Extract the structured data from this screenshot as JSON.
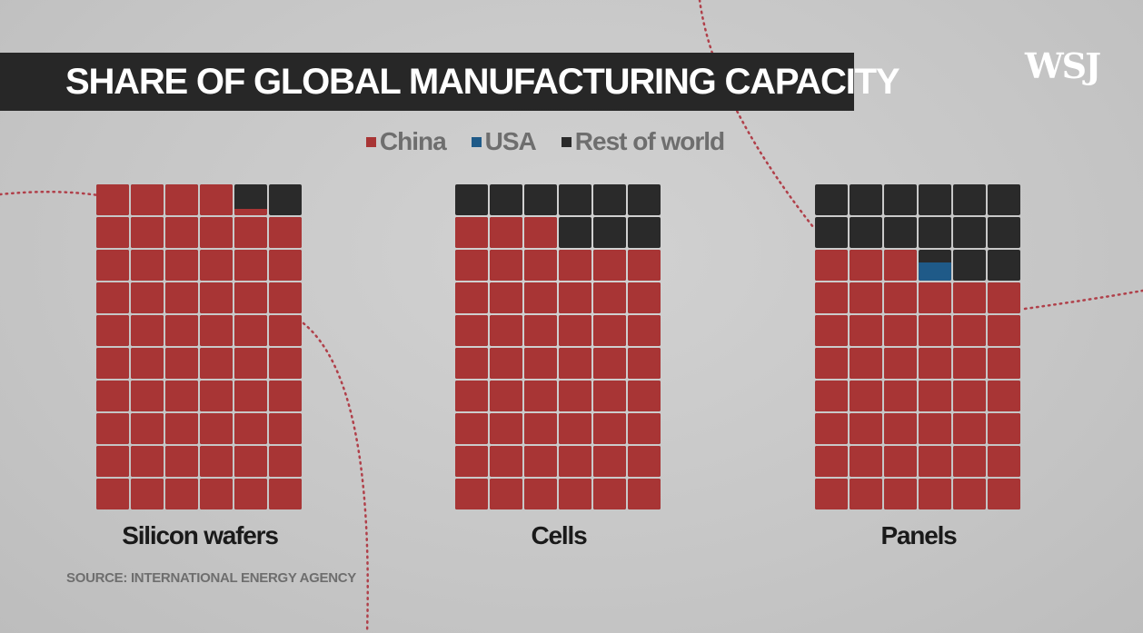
{
  "title": "SHARE OF GLOBAL MANUFACTURING CAPACITY",
  "logo": "WSJ",
  "source": "SOURCE: INTERNATIONAL ENERGY AGENCY",
  "legend": [
    {
      "label": "China",
      "color": "#a83535"
    },
    {
      "label": "USA",
      "color": "#1f5a88"
    },
    {
      "label": "Rest of world",
      "color": "#2a2a2a"
    }
  ],
  "chart_data": [
    {
      "type": "waffle",
      "label": "Silicon wafers",
      "grid": {
        "rows": 10,
        "cols": 6
      },
      "series": [
        {
          "name": "China",
          "value": 97
        },
        {
          "name": "USA",
          "value": 0
        },
        {
          "name": "Rest of world",
          "value": 3
        }
      ]
    },
    {
      "type": "waffle",
      "label": "Cells",
      "grid": {
        "rows": 10,
        "cols": 6
      },
      "series": [
        {
          "name": "China",
          "value": 85
        },
        {
          "name": "USA",
          "value": 0
        },
        {
          "name": "Rest of world",
          "value": 15
        }
      ]
    },
    {
      "type": "waffle",
      "label": "Panels",
      "grid": {
        "rows": 10,
        "cols": 6
      },
      "series": [
        {
          "name": "China",
          "value": 75
        },
        {
          "name": "USA",
          "value": 1
        },
        {
          "name": "Rest of world",
          "value": 24
        }
      ]
    }
  ]
}
